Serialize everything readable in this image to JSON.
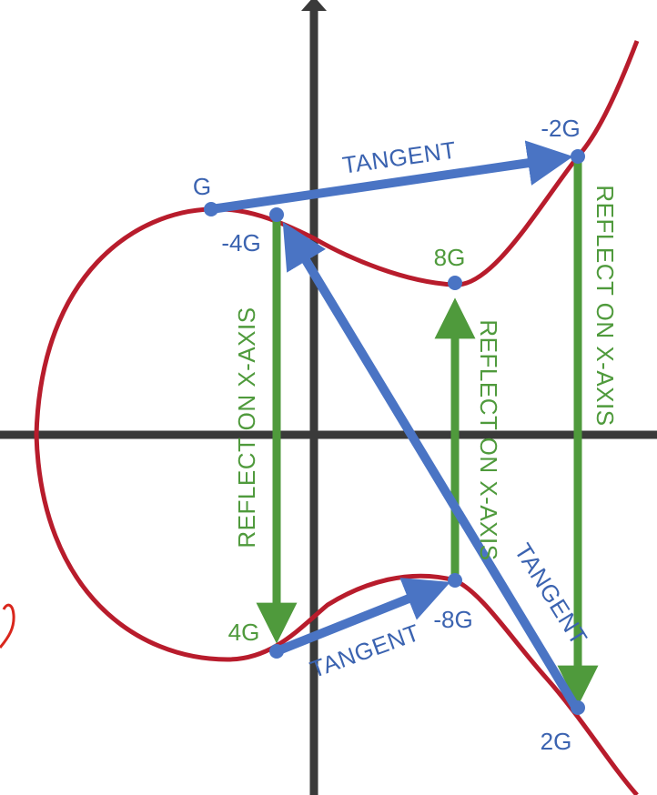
{
  "colors": {
    "curve": "#b81c2c",
    "axis": "#3a3a3a",
    "tangent": "#4a74c4",
    "reflect": "#4f9a3c",
    "blue_text": "#3b63b0",
    "green_text": "#4f9a3c",
    "scribble": "#d9261c"
  },
  "points": {
    "G": "G",
    "neg2G": "-2G",
    "neg4G": "-4G",
    "p8G": "8G",
    "p4G": "4G",
    "neg8G": "-8G",
    "p2G": "2G"
  },
  "operations": {
    "tangent_top": "TANGENT",
    "tangent_bottom": "TANGENT",
    "tangent_diagonal": "TANGENT",
    "reflect_left": "REFLECT ON X-AXIS",
    "reflect_middle": "REFLECT ON X-AXIS",
    "reflect_right": "REFLECT ON X-AXIS"
  }
}
